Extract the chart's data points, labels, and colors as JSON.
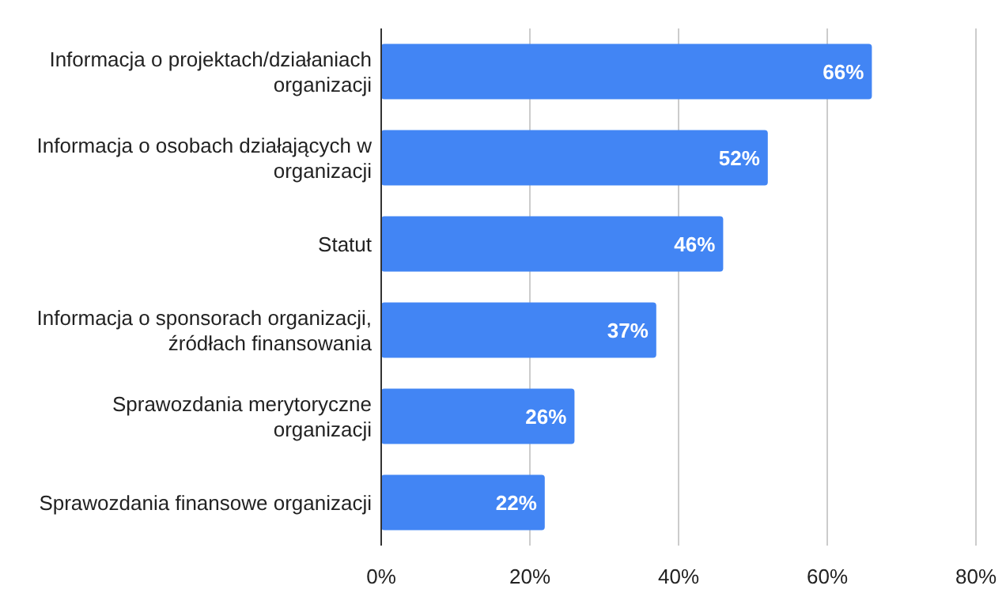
{
  "chart_data": {
    "type": "bar",
    "orientation": "horizontal",
    "categories": [
      "Informacja o projektach/działaniach organizacji",
      "Informacja o osobach działających w organizacji",
      "Statut",
      "Informacja o sponsorach organizacji, źródłach finansowania",
      "Sprawozdania merytoryczne organizacji",
      "Sprawozdania finansowe organizacji"
    ],
    "values": [
      66,
      52,
      46,
      37,
      26,
      22
    ],
    "value_labels": [
      "66%",
      "52%",
      "46%",
      "37%",
      "26%",
      "22%"
    ],
    "color": "#4285f4",
    "xlim": [
      0,
      80
    ],
    "xticks": [
      {
        "value": 0,
        "label": "0%"
      },
      {
        "value": 20,
        "label": "20%"
      },
      {
        "value": 40,
        "label": "40%"
      },
      {
        "value": 60,
        "label": "60%"
      },
      {
        "value": 80,
        "label": "80%"
      }
    ],
    "grid": "x"
  }
}
